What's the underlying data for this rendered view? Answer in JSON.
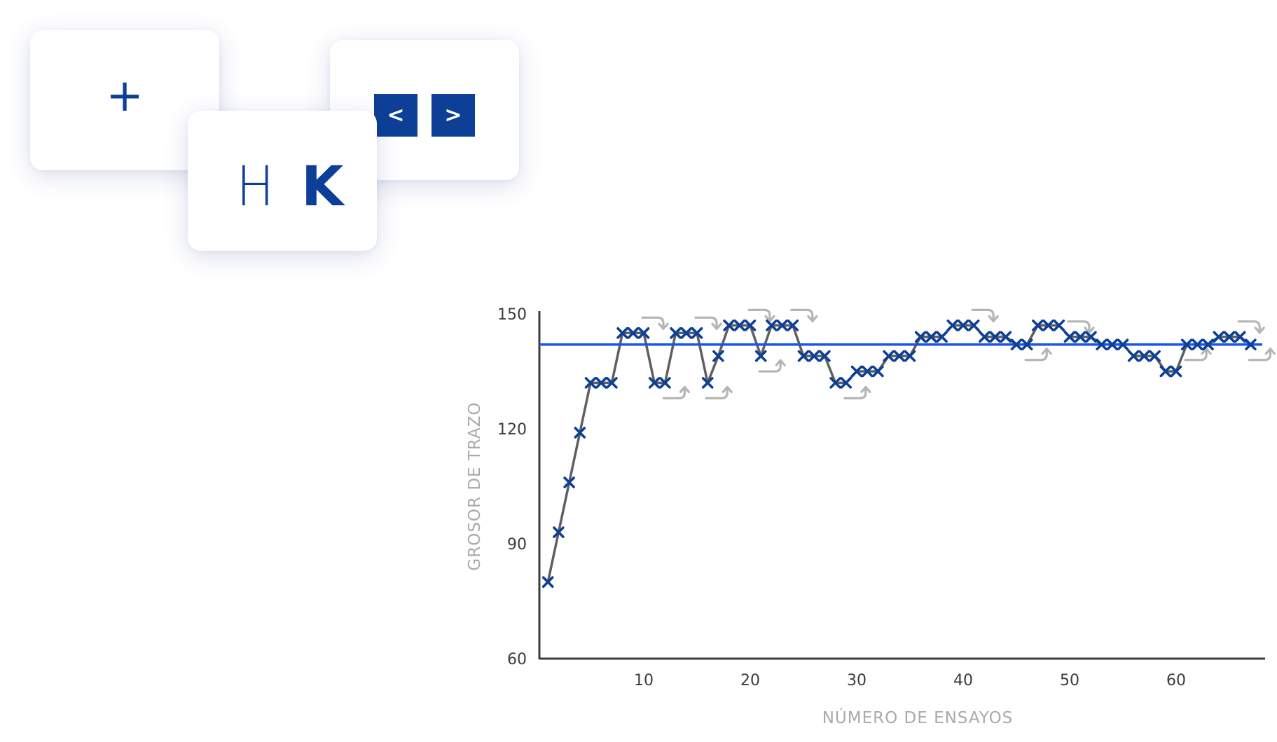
{
  "cards": {
    "fixation": {
      "symbol": "+"
    },
    "choice": {
      "left_key": "<",
      "right_key": ">"
    },
    "letters": {
      "first": "H",
      "second": "K"
    }
  },
  "colors": {
    "brand_blue": "#0d3f96",
    "threshold_line": "#1a55e8",
    "trace_line": "#5f5f5f",
    "marker": "#0d3f96",
    "direction_arrow": "#b5b5b5",
    "axis": "#3c3c3c",
    "axis_title": "#aaaaaa"
  },
  "chart_data": {
    "type": "line",
    "title": "",
    "xlabel": "NÚMERO DE ENSAYOS",
    "ylabel": "GROSOR DE TRAZO",
    "xlim": [
      0,
      68
    ],
    "ylim": [
      60,
      150
    ],
    "xticks": [
      10,
      20,
      30,
      40,
      50,
      60
    ],
    "yticks": [
      60,
      90,
      120,
      150
    ],
    "grid": false,
    "legend": "none",
    "threshold": 142,
    "series": [
      {
        "x": [
          1,
          2,
          3,
          4,
          5,
          6,
          7,
          8,
          9,
          10,
          11,
          12,
          13,
          14,
          15,
          16,
          17,
          18,
          19,
          20,
          21,
          22,
          23,
          24,
          25,
          26,
          27,
          28,
          29,
          30,
          31,
          32,
          33,
          34,
          35,
          36,
          37,
          38,
          39,
          40,
          41,
          42,
          43,
          44,
          45,
          46,
          47,
          48,
          49,
          50,
          51,
          52,
          53,
          54,
          55,
          56,
          57,
          58,
          59,
          60,
          61,
          62,
          63,
          64,
          65,
          66,
          67
        ],
        "values": [
          80,
          93,
          106,
          119,
          132,
          132,
          132,
          145,
          145,
          145,
          132,
          132,
          145,
          145,
          145,
          132,
          139,
          147,
          147,
          147,
          139,
          147,
          147,
          147,
          139,
          139,
          139,
          132,
          132,
          135,
          135,
          135,
          139,
          139,
          139,
          144,
          144,
          144,
          147,
          147,
          147,
          144,
          144,
          144,
          142,
          142,
          147,
          147,
          147,
          144,
          144,
          144,
          142,
          142,
          142,
          139,
          139,
          139,
          135,
          135,
          142,
          142,
          142,
          144,
          144,
          144,
          142
        ]
      }
    ],
    "direction_changes": [
      {
        "trial": 10,
        "direction": "down"
      },
      {
        "trial": 12,
        "direction": "up"
      },
      {
        "trial": 15,
        "direction": "down"
      },
      {
        "trial": 16,
        "direction": "up"
      },
      {
        "trial": 20,
        "direction": "down"
      },
      {
        "trial": 21,
        "direction": "up"
      },
      {
        "trial": 24,
        "direction": "down"
      },
      {
        "trial": 29,
        "direction": "up"
      },
      {
        "trial": 41,
        "direction": "down"
      },
      {
        "trial": 46,
        "direction": "up"
      },
      {
        "trial": 50,
        "direction": "down"
      },
      {
        "trial": 61,
        "direction": "up"
      },
      {
        "trial": 66,
        "direction": "down"
      },
      {
        "trial": 67,
        "direction": "up"
      }
    ]
  }
}
